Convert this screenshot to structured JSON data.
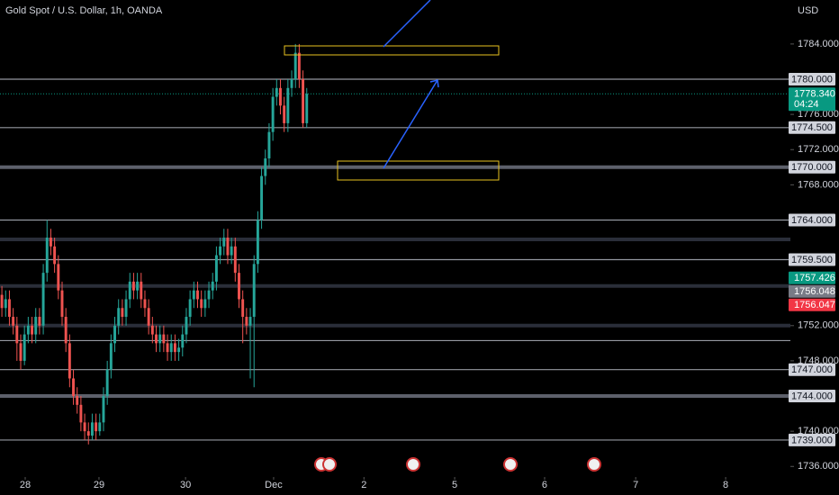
{
  "chart_data": {
    "type": "candlestick",
    "title": "Gold Spot / U.S. Dollar, 1h, OANDA",
    "currency": "USD",
    "up_color": "#26a69a",
    "down_color": "#ef5350",
    "ylim": [
      1734.8,
      1789.0
    ],
    "yticks": [
      {
        "value": 1784,
        "label": "1784.000"
      },
      {
        "value": 1776,
        "label": "1776.000"
      },
      {
        "value": 1772,
        "label": "1772.000"
      },
      {
        "value": 1768,
        "label": "1768.000"
      },
      {
        "value": 1752,
        "label": "1752.000"
      },
      {
        "value": 1748,
        "label": "1748.000"
      },
      {
        "value": 1740,
        "label": "1740.000"
      },
      {
        "value": 1736,
        "label": "1736.000"
      }
    ],
    "xlim": [
      0,
      210
    ],
    "xticks": [
      {
        "value": 6.7,
        "label": "28"
      },
      {
        "value": 26.3,
        "label": "29"
      },
      {
        "value": 49.3,
        "label": "30"
      },
      {
        "value": 72.7,
        "label": "Dec"
      },
      {
        "value": 96.7,
        "label": "2"
      },
      {
        "value": 120.8,
        "label": "5"
      },
      {
        "value": 144.7,
        "label": "6"
      },
      {
        "value": 168.9,
        "label": "7"
      },
      {
        "value": 192.8,
        "label": "8"
      }
    ],
    "open": [
      1755.5,
      1754,
      1755,
      1753,
      1752,
      1750,
      1748,
      1751,
      1752,
      1751,
      1753,
      1752,
      1758,
      1762,
      1761,
      1759,
      1756,
      1753,
      1750,
      1746,
      1744,
      1743,
      1741,
      1740,
      1739.5,
      1741,
      1740,
      1741,
      1744,
      1747,
      1750,
      1752,
      1754,
      1753,
      1755,
      1757,
      1756,
      1757,
      1755,
      1754,
      1752,
      1751,
      1750,
      1751,
      1750,
      1749,
      1750,
      1749,
      1749.5,
      1751,
      1753,
      1755,
      1756,
      1755,
      1754,
      1755,
      1756,
      1757,
      1760,
      1761,
      1762,
      1760,
      1761,
      1758,
      1755,
      1753,
      1752,
      1753,
      1759,
      1764,
      1769,
      1771,
      1774,
      1778,
      1779,
      1777,
      1775,
      1779,
      1780,
      1783,
      1780,
      1775
    ],
    "high": [
      1756.5,
      1756,
      1756,
      1754,
      1753,
      1751,
      1752,
      1753,
      1753,
      1754,
      1754,
      1759,
      1764,
      1763,
      1762,
      1760,
      1757,
      1754,
      1751,
      1747,
      1745,
      1744,
      1742,
      1741,
      1742,
      1742,
      1742,
      1745,
      1748,
      1751,
      1753,
      1755,
      1755,
      1756,
      1758,
      1758,
      1758,
      1758,
      1756,
      1755,
      1753,
      1752,
      1752,
      1752,
      1751,
      1751,
      1751,
      1750.5,
      1752,
      1754,
      1756,
      1757,
      1757,
      1756,
      1756,
      1757,
      1758,
      1761,
      1762,
      1763,
      1763,
      1762,
      1762,
      1759,
      1756,
      1754,
      1754,
      1760,
      1765,
      1770,
      1772,
      1775,
      1779,
      1780,
      1780,
      1778,
      1780,
      1781,
      1784,
      1784,
      1781,
      1779
    ],
    "low": [
      1753,
      1753,
      1752,
      1751,
      1748,
      1747,
      1747.5,
      1750,
      1750,
      1750,
      1751,
      1751,
      1757,
      1760,
      1758,
      1755,
      1752,
      1749,
      1745,
      1743,
      1742,
      1740,
      1739,
      1738.5,
      1739,
      1739,
      1739.5,
      1740,
      1743,
      1746,
      1749,
      1751,
      1752,
      1752,
      1754,
      1755,
      1755,
      1754,
      1753,
      1751,
      1750,
      1749,
      1749,
      1749,
      1748,
      1748,
      1748,
      1748,
      1748.5,
      1750,
      1752,
      1754,
      1754,
      1753,
      1753,
      1754,
      1755,
      1756,
      1759,
      1760,
      1759,
      1759,
      1757,
      1754,
      1750,
      1751,
      1746,
      1745,
      1758,
      1763,
      1768,
      1770,
      1773,
      1777,
      1776,
      1774,
      1774,
      1778,
      1779,
      1779,
      1774.5,
      1774.5
    ],
    "close": [
      1754,
      1755,
      1753,
      1752,
      1750,
      1748,
      1751,
      1752,
      1751,
      1753,
      1752,
      1758,
      1762,
      1761,
      1759,
      1756,
      1753,
      1750,
      1746,
      1744,
      1743,
      1741,
      1740,
      1739.5,
      1741,
      1740,
      1741,
      1744,
      1747,
      1750,
      1752,
      1754,
      1753,
      1755,
      1757,
      1756,
      1757,
      1755,
      1754,
      1752,
      1751,
      1750,
      1751,
      1750,
      1749,
      1750,
      1749,
      1749.5,
      1751,
      1753,
      1755,
      1756,
      1755,
      1754,
      1755,
      1756,
      1757,
      1760,
      1761,
      1762,
      1760,
      1761,
      1758,
      1755,
      1753,
      1752,
      1753,
      1759,
      1764,
      1769,
      1771,
      1774,
      1778,
      1779,
      1777,
      1775,
      1779,
      1780,
      1783,
      1780,
      1775,
      1778.34
    ],
    "horizontal_lines": [
      {
        "value": 1780,
        "label": "1780.000",
        "style": "thin"
      },
      {
        "value": 1774.5,
        "label": "1774.500",
        "style": "thin"
      },
      {
        "value": 1770,
        "label": "1770.000",
        "style": "band"
      },
      {
        "value": 1764,
        "label": "1764.000",
        "style": "thin"
      },
      {
        "value": 1761.8,
        "style": "dark"
      },
      {
        "value": 1759.5,
        "label": "1759.500",
        "style": "thin"
      },
      {
        "value": 1756.5,
        "style": "dark"
      },
      {
        "value": 1752,
        "style": "dark"
      },
      {
        "value": 1750.3,
        "style": "thin"
      },
      {
        "value": 1747,
        "label": "1747.000",
        "style": "thin"
      },
      {
        "value": 1744,
        "label": "1744.000",
        "style": "band"
      },
      {
        "value": 1739,
        "label": "1739.000",
        "style": "thin"
      }
    ],
    "price_markers": [
      {
        "value": 1778.34,
        "label": "1778.340",
        "sublabel": "04:24",
        "color": "#089981"
      },
      {
        "value": 1757.426,
        "label": "1757.426",
        "color": "#089981"
      },
      {
        "value": 1756.048,
        "label": "1756.048",
        "color": "#787b86"
      },
      {
        "value": 1756.047,
        "label": "1756.047",
        "color": "#f23645"
      }
    ]
  }
}
